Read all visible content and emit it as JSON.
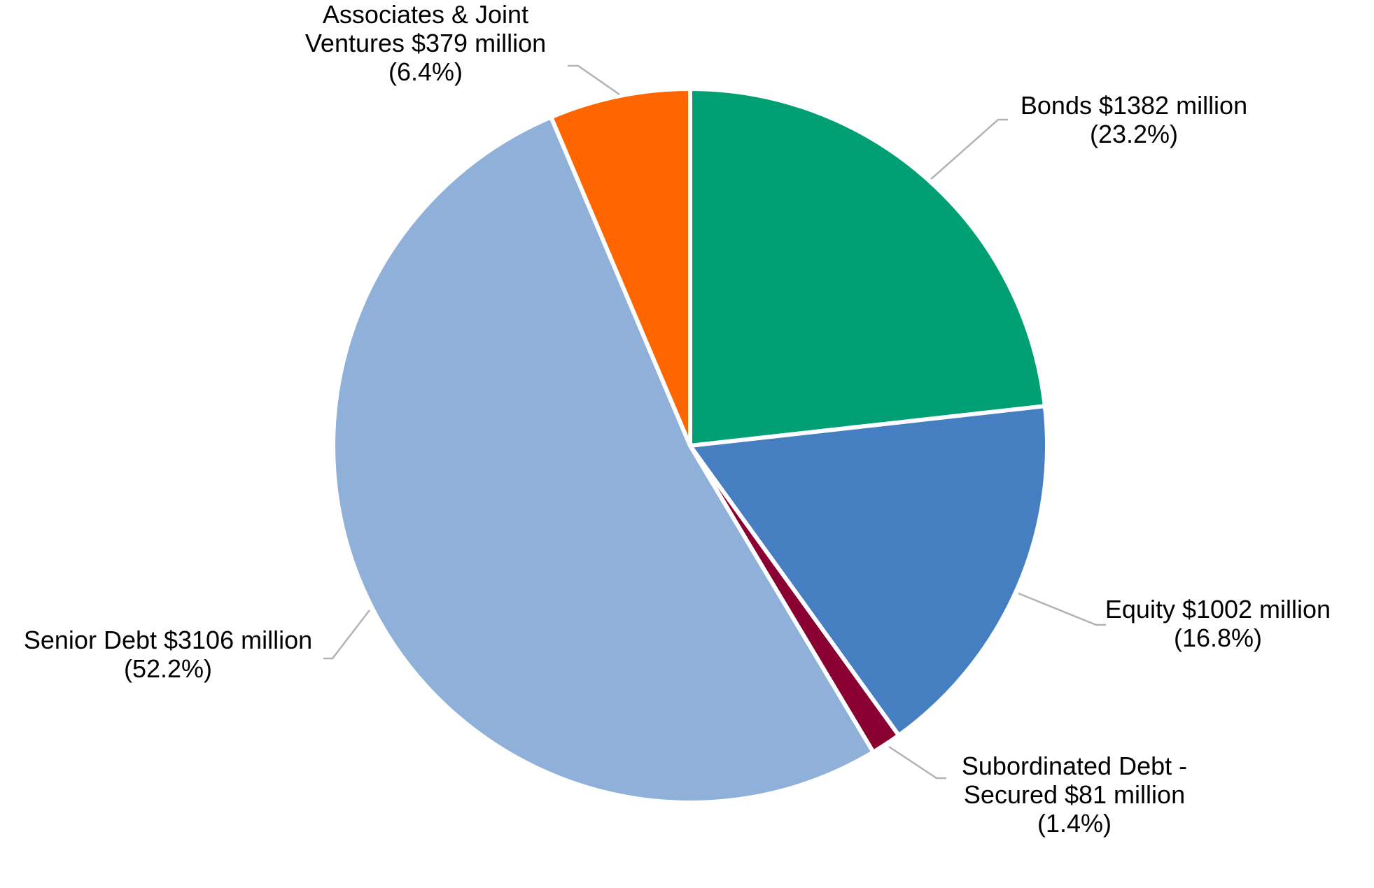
{
  "chart_data": {
    "type": "pie",
    "title": "",
    "start_angle_deg": 0,
    "direction": "clockwise",
    "slices": [
      {
        "name": "Bonds",
        "value": 1382,
        "percent": 23.2,
        "color": "#009f74",
        "label_lines": [
          "Bonds $1382 million",
          "(23.2%)"
        ]
      },
      {
        "name": "Equity",
        "value": 1002,
        "percent": 16.8,
        "color": "#457fc1",
        "label_lines": [
          "Equity $1002 million",
          "(16.8%)"
        ]
      },
      {
        "name": "Subordinated Debt - Secured",
        "value": 81,
        "percent": 1.4,
        "color": "#8a0031",
        "label_lines": [
          "Subordinated Debt -",
          "Secured $81 million",
          "(1.4%)"
        ]
      },
      {
        "name": "Senior Debt",
        "value": 3106,
        "percent": 52.2,
        "color": "#8fb1d9",
        "label_lines": [
          "Senior Debt $3106 million",
          "(52.2%)"
        ]
      },
      {
        "name": "Associates & Joint Ventures",
        "value": 379,
        "percent": 6.4,
        "color": "#ff6600",
        "label_lines": [
          "Associates & Joint",
          "Ventures $379 million",
          "(6.4%)"
        ]
      }
    ],
    "legend": "none",
    "leader_line_color": "#b3b3b3",
    "background": "#ffffff"
  }
}
